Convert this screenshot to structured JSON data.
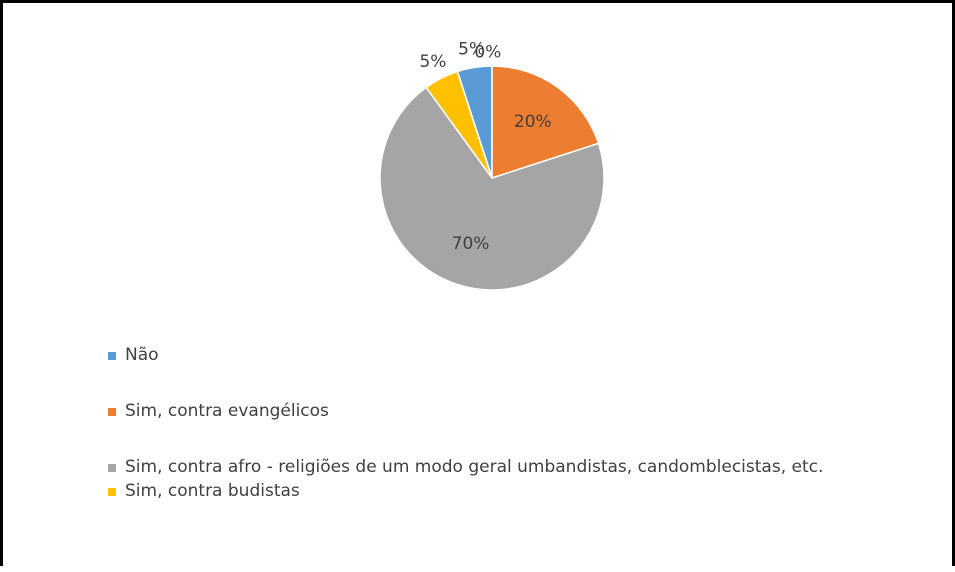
{
  "chart_data": {
    "type": "pie",
    "categories": [
      "Não",
      "Sim, contra evangélicos",
      "Sim, contra afro - religiões de um modo geral umbandistas, candomblecistas, etc.",
      "Sim, contra budistas",
      null
    ],
    "values": [
      5,
      20,
      70,
      5,
      0
    ],
    "value_labels": [
      "5%",
      "20%",
      "70%",
      "5%",
      "0%"
    ],
    "colors": [
      "#5b9bd5",
      "#ed7d31",
      "#a5a5a5",
      "#ffc000",
      "#4472c4"
    ],
    "legend": "bottom-left"
  }
}
